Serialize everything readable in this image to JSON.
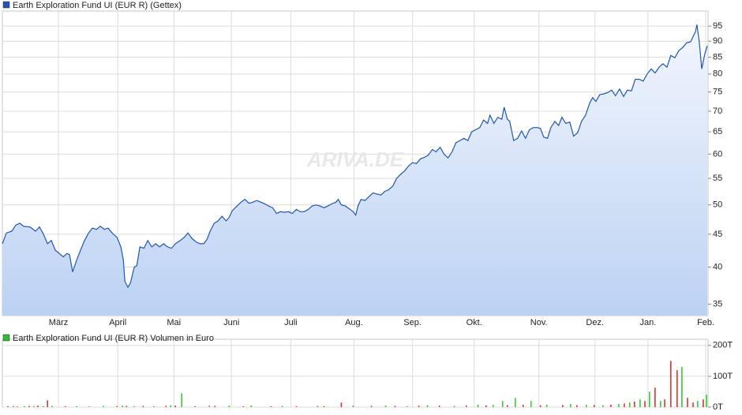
{
  "chart_data": [
    {
      "type": "line",
      "log_scale": true,
      "grid": true,
      "watermark": "ARIVA.DE",
      "xlim": [
        0,
        367.5
      ],
      "xticks": [
        {
          "value": 29.2,
          "label": "März"
        },
        {
          "value": 60.1,
          "label": "April"
        },
        {
          "value": 89.3,
          "label": "Mai"
        },
        {
          "value": 119.3,
          "label": "Juni"
        },
        {
          "value": 150.2,
          "label": "Juli"
        },
        {
          "value": 183.1,
          "label": "Aug."
        },
        {
          "value": 213.6,
          "label": "Sep."
        },
        {
          "value": 245.7,
          "label": "Okt."
        },
        {
          "value": 279.4,
          "label": "Nov."
        },
        {
          "value": 308.6,
          "label": "Dez."
        },
        {
          "value": 336.2,
          "label": "Jan."
        },
        {
          "value": 366.3,
          "label": "Feb."
        }
      ],
      "ylim": [
        33.6,
        100.3
      ],
      "yticks": [
        35,
        40,
        45,
        50,
        55,
        60,
        65,
        70,
        75,
        80,
        85,
        90,
        95
      ],
      "x": [
        0,
        2.1,
        4.9,
        7,
        9.1,
        11.1,
        14.4,
        17.3,
        19.3,
        21.4,
        23.5,
        25.5,
        27.6,
        29.6,
        31.7,
        33.7,
        35,
        36.6,
        38.7,
        40.7,
        42.8,
        44.9,
        46.9,
        49,
        51,
        53.1,
        55.1,
        57.2,
        59.7,
        61.7,
        63,
        63.8,
        65.4,
        66.7,
        68.7,
        70,
        71.6,
        73.7,
        75.7,
        77.8,
        79.8,
        81.9,
        84,
        86,
        88.1,
        90.1,
        92.6,
        94.7,
        96.7,
        98.8,
        100.8,
        102.9,
        104.9,
        106.6,
        108.2,
        110.3,
        112.3,
        114.4,
        116.5,
        118.1,
        119.8,
        122.2,
        124.3,
        126.3,
        128.4,
        130.5,
        132.5,
        134.6,
        136.6,
        138.7,
        140.7,
        142.8,
        144.9,
        146.9,
        149,
        151,
        153.1,
        155.1,
        157.2,
        159.3,
        161.3,
        163.4,
        165.4,
        167.5,
        169.5,
        171.6,
        173.7,
        174.9,
        176.5,
        178.6,
        180.7,
        182.7,
        184,
        185.2,
        186.8,
        188.9,
        190.9,
        193,
        195.1,
        197.1,
        199.2,
        201.2,
        203.3,
        205.3,
        207.4,
        209.5,
        211.5,
        213.6,
        215.6,
        217.7,
        219.8,
        221.8,
        223.9,
        225.9,
        228,
        230,
        232.1,
        234.2,
        236.2,
        238.3,
        240.3,
        242.4,
        244.4,
        246.5,
        248.6,
        250.6,
        252.7,
        253.9,
        256,
        258,
        260.1,
        261.3,
        263,
        264.2,
        266.3,
        268.3,
        270.4,
        272.4,
        274.5,
        276.5,
        278.6,
        280.2,
        281.9,
        283.9,
        285.6,
        287.7,
        289.7,
        291.4,
        293.4,
        295.5,
        297.5,
        299.6,
        301.6,
        303.7,
        305.8,
        307.4,
        309.1,
        311.1,
        313.2,
        315.2,
        317.3,
        319.3,
        321.4,
        323.5,
        325.5,
        327.6,
        329.6,
        331.7,
        333.7,
        335.8,
        337.9,
        339.9,
        342,
        344,
        346.1,
        348.1,
        350.2,
        352.3,
        354.3,
        356.4,
        358.4,
        359.7,
        360.9,
        361.7,
        362.9,
        364.2,
        365.8,
        367.1
      ],
      "series": [
        {
          "name": "Earth Exploration Fund UI (EUR R) (Gettex)",
          "color": "#1f56b0",
          "values": [
            43.5,
            45.2,
            45.5,
            46.5,
            46.8,
            46.3,
            46.2,
            45.5,
            46.2,
            45,
            43.5,
            44,
            42.5,
            42,
            41.5,
            42,
            41.8,
            39.3,
            41,
            42.5,
            44,
            45.2,
            46,
            45.8,
            46.3,
            45.8,
            46,
            45.2,
            44.5,
            43,
            41,
            38,
            37.2,
            37.8,
            40,
            40.2,
            43,
            42.8,
            44,
            43,
            43.5,
            43,
            43.5,
            43,
            42.8,
            43.5,
            44,
            44.5,
            45.2,
            44.3,
            43.8,
            43.5,
            43.5,
            44.2,
            45.5,
            46.8,
            47.2,
            48,
            47.2,
            47.8,
            49,
            49.8,
            50.5,
            51,
            50.3,
            50.5,
            50.8,
            50.5,
            50.2,
            49.8,
            49.5,
            48.5,
            48.8,
            48.7,
            48.8,
            48.5,
            49.2,
            48.8,
            48.8,
            49.2,
            49.8,
            50,
            49.8,
            49.5,
            49.8,
            50.2,
            50.5,
            51,
            50,
            49.8,
            49.3,
            48.8,
            48.2,
            49.8,
            51,
            50.8,
            51.5,
            52.2,
            52,
            51.8,
            52.5,
            52.8,
            53.5,
            55,
            55.8,
            56.5,
            57.5,
            58.2,
            58,
            59,
            59.3,
            59.8,
            61,
            60.5,
            61.5,
            60,
            59.2,
            60.5,
            62.5,
            63,
            63.5,
            63,
            65,
            65.5,
            66,
            67.8,
            67,
            69,
            67,
            68.5,
            68,
            71,
            68,
            67.5,
            63,
            63.5,
            65.2,
            63.5,
            65.5,
            66,
            66,
            65.8,
            63.8,
            63.5,
            66,
            67.5,
            66.5,
            68.5,
            67,
            67.3,
            64,
            64.8,
            67.5,
            69,
            72,
            73.5,
            72.5,
            74.3,
            74.5,
            74.8,
            75.5,
            74,
            75.8,
            73.8,
            75.5,
            75.3,
            78.5,
            78.5,
            78,
            80,
            81.5,
            80.3,
            82,
            83,
            82,
            85.5,
            84.8,
            87,
            88,
            89.5,
            89.8,
            91.5,
            93,
            95.5,
            90,
            81.5,
            86,
            88.5
          ]
        }
      ]
    },
    {
      "type": "bar",
      "xlim": [
        0,
        367.5
      ],
      "ylim": [
        0,
        220
      ],
      "yticks": [
        {
          "value": 0,
          "label": "0T"
        },
        {
          "value": 100,
          "label": "100T"
        },
        {
          "value": 200,
          "label": "200T"
        }
      ],
      "x": [
        2.9,
        5.8,
        7.8,
        11.5,
        14,
        16.5,
        18.5,
        21.4,
        23.5,
        25.9,
        32.9,
        38.7,
        45.3,
        52.7,
        59.7,
        62.6,
        64.6,
        68.7,
        73.3,
        79,
        85.2,
        87.7,
        90.1,
        93.4,
        100.4,
        107.8,
        110.7,
        118.1,
        125.5,
        129.6,
        139.9,
        145.7,
        153.1,
        164.2,
        167.5,
        176.5,
        182.7,
        192.2,
        199.6,
        204.5,
        210.7,
        216.9,
        221.4,
        227.6,
        235.4,
        241.6,
        247.7,
        251.9,
        255.6,
        260.5,
        263,
        267.1,
        271.2,
        275.3,
        280.2,
        283.5,
        291.8,
        295.9,
        299.2,
        304.1,
        308.2,
        312.8,
        316.9,
        321,
        323.9,
        326.7,
        329.2,
        332.1,
        334.6,
        337,
        339.9,
        342.8,
        344.9,
        348.1,
        351.4,
        353.9,
        356.8,
        359.7,
        362.1,
        365,
        366.7
      ],
      "series": [
        {
          "name": "Earth Exploration Fund UI (EUR R) Volumen in Euro",
          "color": "#33bb33",
          "values": [
            3,
            4,
            2,
            3,
            4,
            3,
            5,
            3,
            22,
            4,
            3,
            3,
            2,
            4,
            3,
            5,
            4,
            3,
            4,
            3,
            4,
            6,
            5,
            45,
            3,
            5,
            4,
            5,
            3,
            5,
            3,
            4,
            3,
            4,
            3,
            15,
            5,
            4,
            5,
            4,
            3,
            5,
            6,
            5,
            4,
            5,
            8,
            6,
            7,
            20,
            6,
            30,
            8,
            20,
            6,
            8,
            7,
            10,
            6,
            8,
            7,
            6,
            8,
            10,
            12,
            15,
            18,
            25,
            20,
            50,
            63,
            20,
            25,
            150,
            120,
            130,
            30,
            15,
            20,
            25,
            40
          ],
          "bar_colors": [
            "#d33",
            "#3c3",
            "#d33",
            "#3c3",
            "#d33",
            "#3c3",
            "#d33",
            "#3c3",
            "#d33",
            "#3c3",
            "#d33",
            "#3c3",
            "#d33",
            "#3c3",
            "#d33",
            "#3c3",
            "#d33",
            "#3c3",
            "#d33",
            "#3c3",
            "#d33",
            "#3c3",
            "#d33",
            "#3c3",
            "#d33",
            "#3c3",
            "#d33",
            "#3c3",
            "#d33",
            "#3c3",
            "#d33",
            "#3c3",
            "#d33",
            "#3c3",
            "#d33",
            "#d33",
            "#3c3",
            "#d33",
            "#3c3",
            "#d33",
            "#3c3",
            "#d33",
            "#3c3",
            "#d33",
            "#3c3",
            "#d33",
            "#3c3",
            "#d33",
            "#3c3",
            "#3c3",
            "#d33",
            "#3c3",
            "#d33",
            "#3c3",
            "#d33",
            "#3c3",
            "#d33",
            "#3c3",
            "#d33",
            "#3c3",
            "#d33",
            "#3c3",
            "#d33",
            "#3c3",
            "#d33",
            "#3c3",
            "#d33",
            "#3c3",
            "#d33",
            "#3c3",
            "#d33",
            "#3c3",
            "#d33",
            "#d33",
            "#d33",
            "#3c3",
            "#d33",
            "#d33",
            "#3c3",
            "#d33",
            "#3c3"
          ]
        }
      ]
    }
  ]
}
